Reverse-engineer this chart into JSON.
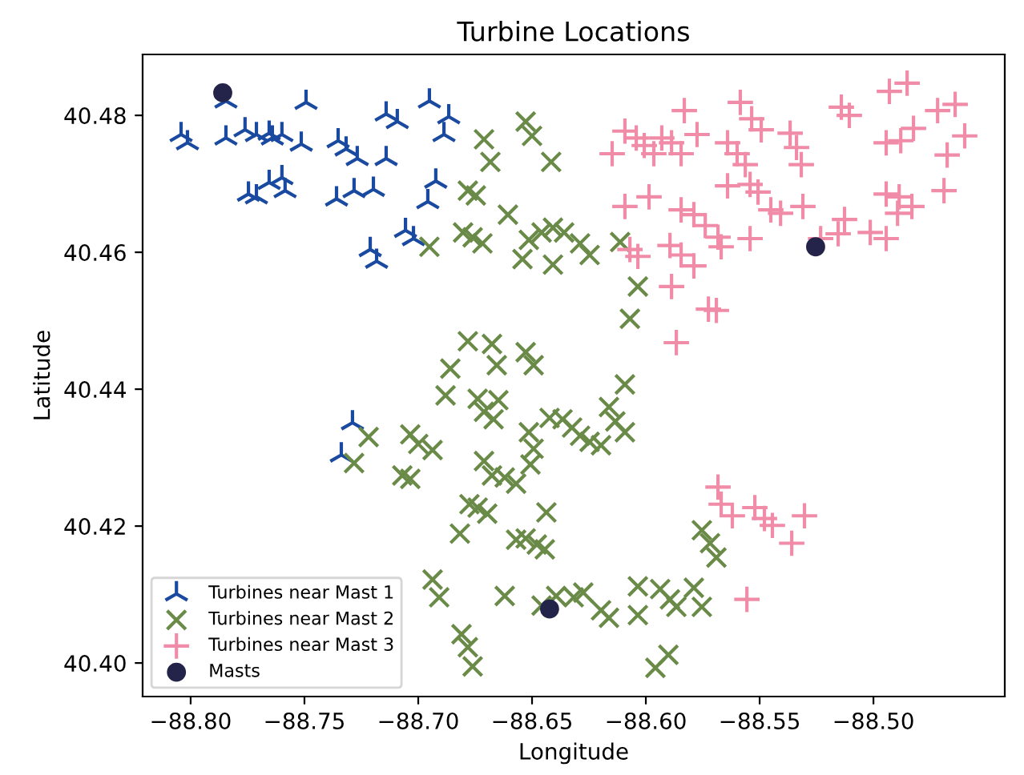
{
  "chart_data": {
    "type": "scatter",
    "title": "Turbine Locations",
    "xlabel": "Longitude",
    "ylabel": "Latitude",
    "xlim": [
      -88.8211,
      -88.4423
    ],
    "ylim": [
      40.3951,
      40.4889
    ],
    "xticks": [
      {
        "value": -88.8,
        "label": "−88.80"
      },
      {
        "value": -88.75,
        "label": "−88.75"
      },
      {
        "value": -88.7,
        "label": "−88.70"
      },
      {
        "value": -88.65,
        "label": "−88.65"
      },
      {
        "value": -88.6,
        "label": "−88.60"
      },
      {
        "value": -88.55,
        "label": "−88.55"
      },
      {
        "value": -88.5,
        "label": "−88.50"
      }
    ],
    "yticks": [
      {
        "value": 40.4,
        "label": "40.40"
      },
      {
        "value": 40.42,
        "label": "40.42"
      },
      {
        "value": 40.44,
        "label": "40.44"
      },
      {
        "value": 40.46,
        "label": "40.46"
      },
      {
        "value": 40.48,
        "label": "40.48"
      }
    ],
    "grid": false,
    "legend": "bottom left",
    "series": [
      {
        "name": "Turbines near Mast 1",
        "color": "#1a4aa0",
        "marker": "cross",
        "x": [
          -88.7845,
          -88.7493,
          -88.8042,
          -88.8014,
          -88.7845,
          -88.7761,
          -88.7711,
          -88.7655,
          -88.7641,
          -88.7599,
          -88.7514,
          -88.7352,
          -88.7317,
          -88.7268,
          -88.7141,
          -88.7141,
          -88.7092,
          -88.6951,
          -88.6866,
          -88.6887,
          -88.6923,
          -88.6958,
          -88.7746,
          -88.7711,
          -88.7655,
          -88.7599,
          -88.7585,
          -88.7359,
          -88.7282,
          -88.7197,
          -88.7056,
          -88.7021,
          -88.7211,
          -88.7183,
          -88.7289,
          -88.7338
        ],
        "values": [
          40.4821,
          40.4819,
          40.4772,
          40.476,
          40.4767,
          40.4779,
          40.4772,
          40.4774,
          40.4767,
          40.4772,
          40.4758,
          40.4763,
          40.4751,
          40.4737,
          40.4737,
          40.4802,
          40.4791,
          40.4821,
          40.4798,
          40.4772,
          40.4704,
          40.4674,
          40.4685,
          40.4681,
          40.4702,
          40.4709,
          40.469,
          40.4678,
          40.469,
          40.4692,
          40.4632,
          40.462,
          40.4604,
          40.4587,
          40.4351,
          40.4304
        ]
      },
      {
        "name": "Turbines near Mast 2",
        "color": "#6a8a48",
        "marker": "x",
        "x": [
          -88.6528,
          -88.65,
          -88.6711,
          -88.6683,
          -88.6416,
          -88.6782,
          -88.6747,
          -88.6606,
          -88.6803,
          -88.6761,
          -88.6718,
          -88.6514,
          -88.6542,
          -88.6458,
          -88.6408,
          -88.6359,
          -88.6408,
          -88.6289,
          -88.6247,
          -88.6113,
          -88.6035,
          -88.607,
          -88.6951,
          -88.6782,
          -88.6676,
          -88.6528,
          -88.6859,
          -88.6655,
          -88.6493,
          -88.688,
          -88.6739,
          -88.6648,
          -88.6711,
          -88.6669,
          -88.6092,
          -88.6162,
          -88.6134,
          -88.6092,
          -88.6423,
          -88.6366,
          -88.6324,
          -88.6289,
          -88.6247,
          -88.6197,
          -88.6514,
          -88.6493,
          -88.6507,
          -88.6711,
          -88.6676,
          -88.662,
          -88.657,
          -88.6937,
          -88.6775,
          -88.6739,
          -88.6697,
          -88.6437,
          -88.6817,
          -88.657,
          -88.6528,
          -88.6479,
          -88.6444,
          -88.6937,
          -88.6908,
          -88.662,
          -88.6458,
          -88.6394,
          -88.6317,
          -88.6275,
          -88.6197,
          -88.6162,
          -88.6035,
          -88.6035,
          -88.5937,
          -88.5894,
          -88.5866,
          -88.5789,
          -88.5754,
          -88.5754,
          -88.5718,
          -88.569,
          -88.681,
          -88.6782,
          -88.6761,
          -88.5958,
          -88.5901,
          -88.7218,
          -88.7282,
          -88.7035,
          -88.7,
          -88.707,
          -88.7035
        ],
        "values": [
          40.4791,
          40.477,
          40.4765,
          40.4732,
          40.4732,
          40.469,
          40.4683,
          40.4655,
          40.4629,
          40.4622,
          40.4613,
          40.4618,
          40.459,
          40.4629,
          40.4636,
          40.4629,
          40.4582,
          40.4613,
          40.4596,
          40.4615,
          40.455,
          40.4503,
          40.4608,
          40.447,
          40.4466,
          40.4454,
          40.443,
          40.4435,
          40.4435,
          40.4391,
          40.4386,
          40.4384,
          40.4367,
          40.4356,
          40.4407,
          40.4374,
          40.4353,
          40.4337,
          40.4358,
          40.4356,
          40.4344,
          40.4332,
          40.4323,
          40.4318,
          40.4337,
          40.4313,
          40.429,
          40.4295,
          40.4274,
          40.4271,
          40.4262,
          40.4311,
          40.4232,
          40.4227,
          40.4218,
          40.422,
          40.4189,
          40.418,
          40.4182,
          40.4173,
          40.4166,
          40.4122,
          40.4096,
          40.4098,
          40.4084,
          40.4098,
          40.4096,
          40.4103,
          40.4077,
          40.4066,
          40.407,
          40.4112,
          40.4108,
          40.4093,
          40.4082,
          40.411,
          40.4082,
          40.4194,
          40.4175,
          40.4154,
          40.4042,
          40.4023,
          40.3995,
          40.3993,
          40.4012,
          40.433,
          40.4292,
          40.4334,
          40.432,
          40.4274,
          40.4269
        ]
      },
      {
        "name": "Turbines near Mast 3",
        "color": "#f08ca8",
        "marker": "plus",
        "x": [
          -88.5831,
          -88.6092,
          -88.6042,
          -88.6007,
          -88.5965,
          -88.593,
          -88.5887,
          -88.5845,
          -88.5775,
          -88.6148,
          -88.6092,
          -88.5986,
          -88.5845,
          -88.5789,
          -88.5739,
          -88.607,
          -88.6035,
          -88.5894,
          -88.5845,
          -88.5789,
          -88.5887,
          -88.5725,
          -88.5866,
          -88.5585,
          -88.5535,
          -88.5493,
          -88.5641,
          -88.5599,
          -88.5563,
          -88.5366,
          -88.5338,
          -88.5317,
          -88.5141,
          -88.5106,
          -88.493,
          -88.4852,
          -88.4944,
          -88.488,
          -88.4824,
          -88.4718,
          -88.4641,
          -88.4599,
          -88.4676,
          -88.5641,
          -88.5542,
          -88.5507,
          -88.5451,
          -88.5408,
          -88.531,
          -88.5127,
          -88.5155,
          -88.5232,
          -88.5014,
          -88.4944,
          -88.4944,
          -88.4887,
          -88.4894,
          -88.4831,
          -88.469,
          -88.5542,
          -88.5683,
          -88.5669,
          -88.569,
          -88.5683,
          -88.5669,
          -88.562,
          -88.5521,
          -88.5479,
          -88.5444,
          -88.5303,
          -88.5359,
          -88.5556
        ],
        "values": [
          40.4807,
          40.4777,
          40.4767,
          40.4756,
          40.4744,
          40.4767,
          40.476,
          40.4744,
          40.4772,
          40.4744,
          40.4667,
          40.4681,
          40.4662,
          40.4655,
          40.4639,
          40.4604,
          40.4594,
          40.461,
          40.4596,
          40.458,
          40.455,
          40.4517,
          40.4468,
          40.4819,
          40.4795,
          40.4779,
          40.476,
          40.4744,
          40.4728,
          40.4774,
          40.4753,
          40.4728,
          40.4812,
          40.48,
          40.4835,
          40.4847,
          40.476,
          40.4763,
          40.4781,
          40.4807,
          40.4816,
          40.477,
          40.4742,
          40.4697,
          40.4699,
          40.4688,
          40.4662,
          40.4657,
          40.4667,
          40.4648,
          40.4627,
          40.462,
          40.4629,
          40.462,
          40.4685,
          40.4681,
          40.4657,
          40.4667,
          40.469,
          40.462,
          40.4622,
          40.4608,
          40.4515,
          40.4257,
          40.4232,
          40.4215,
          40.4227,
          40.4211,
          40.4201,
          40.4215,
          40.4175,
          40.4093
        ]
      },
      {
        "name": "Masts",
        "color": "#24244a",
        "marker": "circle",
        "x": [
          -88.7859,
          -88.6423,
          -88.5254
        ],
        "values": [
          40.4833,
          40.4079,
          40.4608
        ]
      }
    ]
  }
}
